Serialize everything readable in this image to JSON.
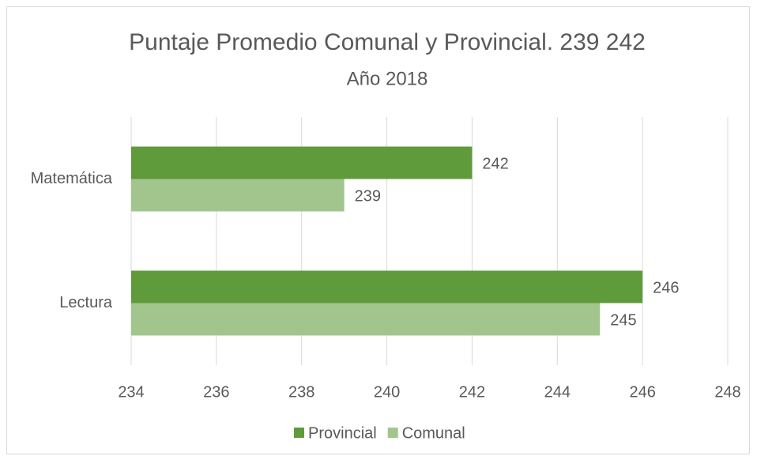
{
  "chart_data": {
    "type": "hbar",
    "title": "Puntaje Promedio Comunal y Provincial. 239 242",
    "subtitle": "Año 2018",
    "categories": [
      "Matemática",
      "Lectura"
    ],
    "series": [
      {
        "name": "Provincial",
        "color": "#5f9a3b",
        "values": [
          242,
          246
        ]
      },
      {
        "name": "Comunal",
        "color": "#a2c58e",
        "values": [
          239,
          245
        ]
      }
    ],
    "xlim": [
      234,
      248
    ],
    "xticks": [
      234,
      236,
      238,
      240,
      242,
      244,
      246,
      248
    ],
    "grid": true,
    "legend": "bottom"
  }
}
